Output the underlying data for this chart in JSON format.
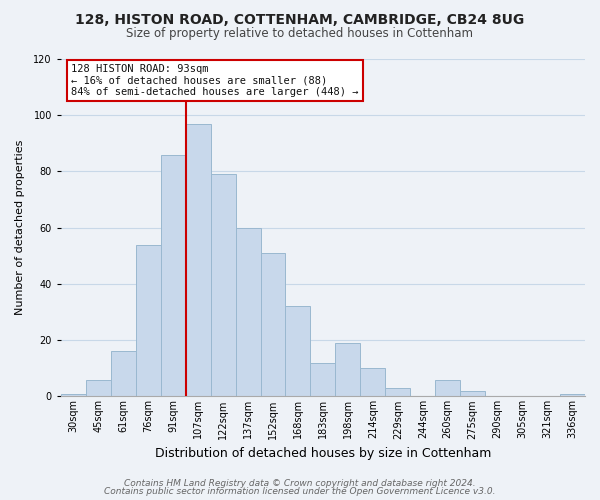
{
  "title1": "128, HISTON ROAD, COTTENHAM, CAMBRIDGE, CB24 8UG",
  "title2": "Size of property relative to detached houses in Cottenham",
  "xlabel": "Distribution of detached houses by size in Cottenham",
  "ylabel": "Number of detached properties",
  "footer1": "Contains HM Land Registry data © Crown copyright and database right 2024.",
  "footer2": "Contains public sector information licensed under the Open Government Licence v3.0.",
  "bar_labels": [
    "30sqm",
    "45sqm",
    "61sqm",
    "76sqm",
    "91sqm",
    "107sqm",
    "122sqm",
    "137sqm",
    "152sqm",
    "168sqm",
    "183sqm",
    "198sqm",
    "214sqm",
    "229sqm",
    "244sqm",
    "260sqm",
    "275sqm",
    "290sqm",
    "305sqm",
    "321sqm",
    "336sqm"
  ],
  "bar_values": [
    1,
    6,
    16,
    54,
    86,
    97,
    79,
    60,
    51,
    32,
    12,
    19,
    10,
    3,
    0,
    6,
    2,
    0,
    0,
    0,
    1
  ],
  "bar_color": "#c8d8eb",
  "bar_edge_color": "#9ab8d0",
  "vline_color": "#cc0000",
  "vline_bar_index": 4,
  "annotation_title": "128 HISTON ROAD: 93sqm",
  "annotation_line1": "← 16% of detached houses are smaller (88)",
  "annotation_line2": "84% of semi-detached houses are larger (448) →",
  "annotation_box_facecolor": "#ffffff",
  "annotation_box_edgecolor": "#cc0000",
  "ylim": [
    0,
    120
  ],
  "yticks": [
    0,
    20,
    40,
    60,
    80,
    100,
    120
  ],
  "grid_color": "#c8d8e8",
  "background_color": "#eef2f7",
  "title_color": "#222222",
  "subtitle_color": "#444444",
  "footer_color": "#666666",
  "title_fontsize": 10,
  "subtitle_fontsize": 8.5,
  "xlabel_fontsize": 9,
  "ylabel_fontsize": 8,
  "tick_fontsize": 7,
  "footer_fontsize": 6.5
}
